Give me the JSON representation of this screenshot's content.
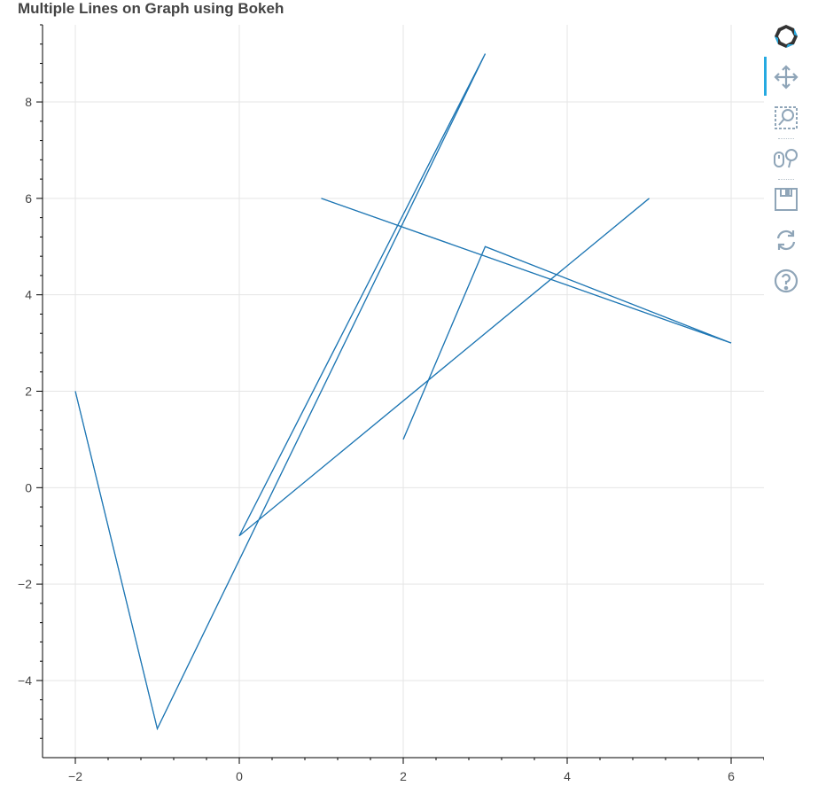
{
  "title": "Multiple Lines on Graph using Bokeh",
  "colors": {
    "line": "#1f77b4",
    "grid": "#e5e5e5",
    "axis": "#000000",
    "tool": "#8fa5b8",
    "tool_active": "#26aae1"
  },
  "toolbar": {
    "tools": [
      {
        "name": "bokeh-logo-icon",
        "interactable": true
      },
      {
        "name": "pan-icon",
        "interactable": true,
        "active": true
      },
      {
        "name": "box-zoom-icon",
        "interactable": true
      },
      {
        "name": "wheel-zoom-icon",
        "interactable": true
      },
      {
        "name": "save-icon",
        "interactable": true
      },
      {
        "name": "reset-icon",
        "interactable": true
      },
      {
        "name": "help-icon",
        "interactable": true
      }
    ]
  },
  "chart_data": {
    "type": "line",
    "title": "Multiple Lines on Graph using Bokeh",
    "xlabel": "",
    "ylabel": "",
    "xlim": [
      -2.4,
      6.4
    ],
    "ylim": [
      -5.6,
      9.6
    ],
    "xticks": [
      -2,
      0,
      2,
      4,
      6
    ],
    "yticks": [
      -4,
      -2,
      0,
      2,
      4,
      6,
      8
    ],
    "x_tick_labels": [
      "−2",
      "0",
      "2",
      "4",
      "6"
    ],
    "y_tick_labels": [
      "−4",
      "−2",
      "0",
      "2",
      "4",
      "6",
      "8"
    ],
    "grid": true,
    "series": [
      {
        "x": [
          -2,
          -1,
          3,
          0,
          5
        ],
        "y": [
          2,
          -5,
          9,
          -1,
          6
        ]
      },
      {
        "x": [
          -2,
          -1,
          3,
          0,
          5
        ],
        "y": [
          2,
          -5,
          9,
          -1,
          6
        ]
      },
      {
        "x": [
          2,
          3,
          6,
          1
        ],
        "y": [
          1,
          5,
          3,
          6
        ]
      },
      {
        "x": [
          2,
          3,
          6,
          1
        ],
        "y": [
          1,
          5,
          3,
          6
        ]
      }
    ]
  }
}
